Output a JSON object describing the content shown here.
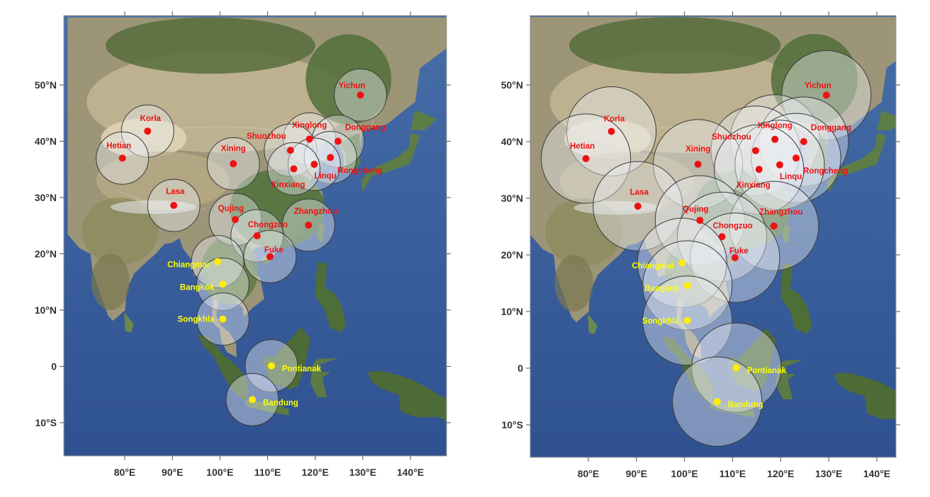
{
  "colors": {
    "china_station": "#ee1111",
    "sea_station": "#ffee00",
    "china_label": "#ee1111",
    "sea_label": "#ffff00",
    "ocean": "#3a5c9c",
    "land_north": "#b9ad92",
    "land_forest": "#4f6e3a",
    "tick_text": "#333333"
  },
  "axes": {
    "lon_ticks": [
      {
        "value": 80,
        "label": "80°E"
      },
      {
        "value": 90,
        "label": "90°E"
      },
      {
        "value": 100,
        "label": "100°E"
      },
      {
        "value": 110,
        "label": "110°E"
      },
      {
        "value": 120,
        "label": "120°E"
      },
      {
        "value": 130,
        "label": "130°E"
      },
      {
        "value": 140,
        "label": "140°E"
      }
    ],
    "lat_ticks": [
      {
        "value": 50,
        "label": "50°N"
      },
      {
        "value": 40,
        "label": "40°N"
      },
      {
        "value": 30,
        "label": "30°N"
      },
      {
        "value": 20,
        "label": "20°N"
      },
      {
        "value": 10,
        "label": "10°N"
      },
      {
        "value": 0,
        "label": "0"
      },
      {
        "value": -10,
        "label": "10°S"
      }
    ]
  },
  "stations": [
    {
      "name": "Yichun",
      "lon": 129.5,
      "lat": 48.2,
      "group": "china"
    },
    {
      "name": "Korla",
      "lon": 84.8,
      "lat": 41.8,
      "group": "china"
    },
    {
      "name": "Hetian",
      "lon": 79.5,
      "lat": 37.0,
      "group": "china"
    },
    {
      "name": "Xinglong",
      "lon": 118.8,
      "lat": 40.4,
      "group": "china"
    },
    {
      "name": "Donggang",
      "lon": 124.8,
      "lat": 40.0,
      "group": "china"
    },
    {
      "name": "Shuozhou",
      "lon": 114.8,
      "lat": 38.4,
      "group": "china"
    },
    {
      "name": "Xining",
      "lon": 102.8,
      "lat": 36.0,
      "group": "china"
    },
    {
      "name": "Rongcheng",
      "lon": 123.2,
      "lat": 37.1,
      "group": "china"
    },
    {
      "name": "Linqu",
      "lon": 119.8,
      "lat": 35.9,
      "group": "china"
    },
    {
      "name": "Xinxiang",
      "lon": 115.5,
      "lat": 35.1,
      "group": "china"
    },
    {
      "name": "Lasa",
      "lon": 90.3,
      "lat": 28.6,
      "group": "china"
    },
    {
      "name": "Qujing",
      "lon": 103.2,
      "lat": 26.1,
      "group": "china"
    },
    {
      "name": "Zhangzhou",
      "lon": 118.6,
      "lat": 25.1,
      "group": "china"
    },
    {
      "name": "Chongzuo",
      "lon": 107.8,
      "lat": 23.2,
      "group": "china"
    },
    {
      "name": "Fuke",
      "lon": 110.5,
      "lat": 19.5,
      "group": "china"
    },
    {
      "name": "Chiangmai",
      "lon": 99.5,
      "lat": 18.6,
      "group": "sea"
    },
    {
      "name": "Bangkok",
      "lon": 100.6,
      "lat": 14.6,
      "group": "sea"
    },
    {
      "name": "Songkhla",
      "lon": 100.6,
      "lat": 8.4,
      "group": "sea"
    },
    {
      "name": "Pontianak",
      "lon": 110.8,
      "lat": 0.1,
      "group": "sea"
    },
    {
      "name": "Bandung",
      "lon": 106.8,
      "lat": -5.9,
      "group": "sea"
    }
  ],
  "panels": [
    {
      "id": "left",
      "radius_deg": 5.5
    },
    {
      "id": "right",
      "radius_deg": 9.3
    }
  ]
}
